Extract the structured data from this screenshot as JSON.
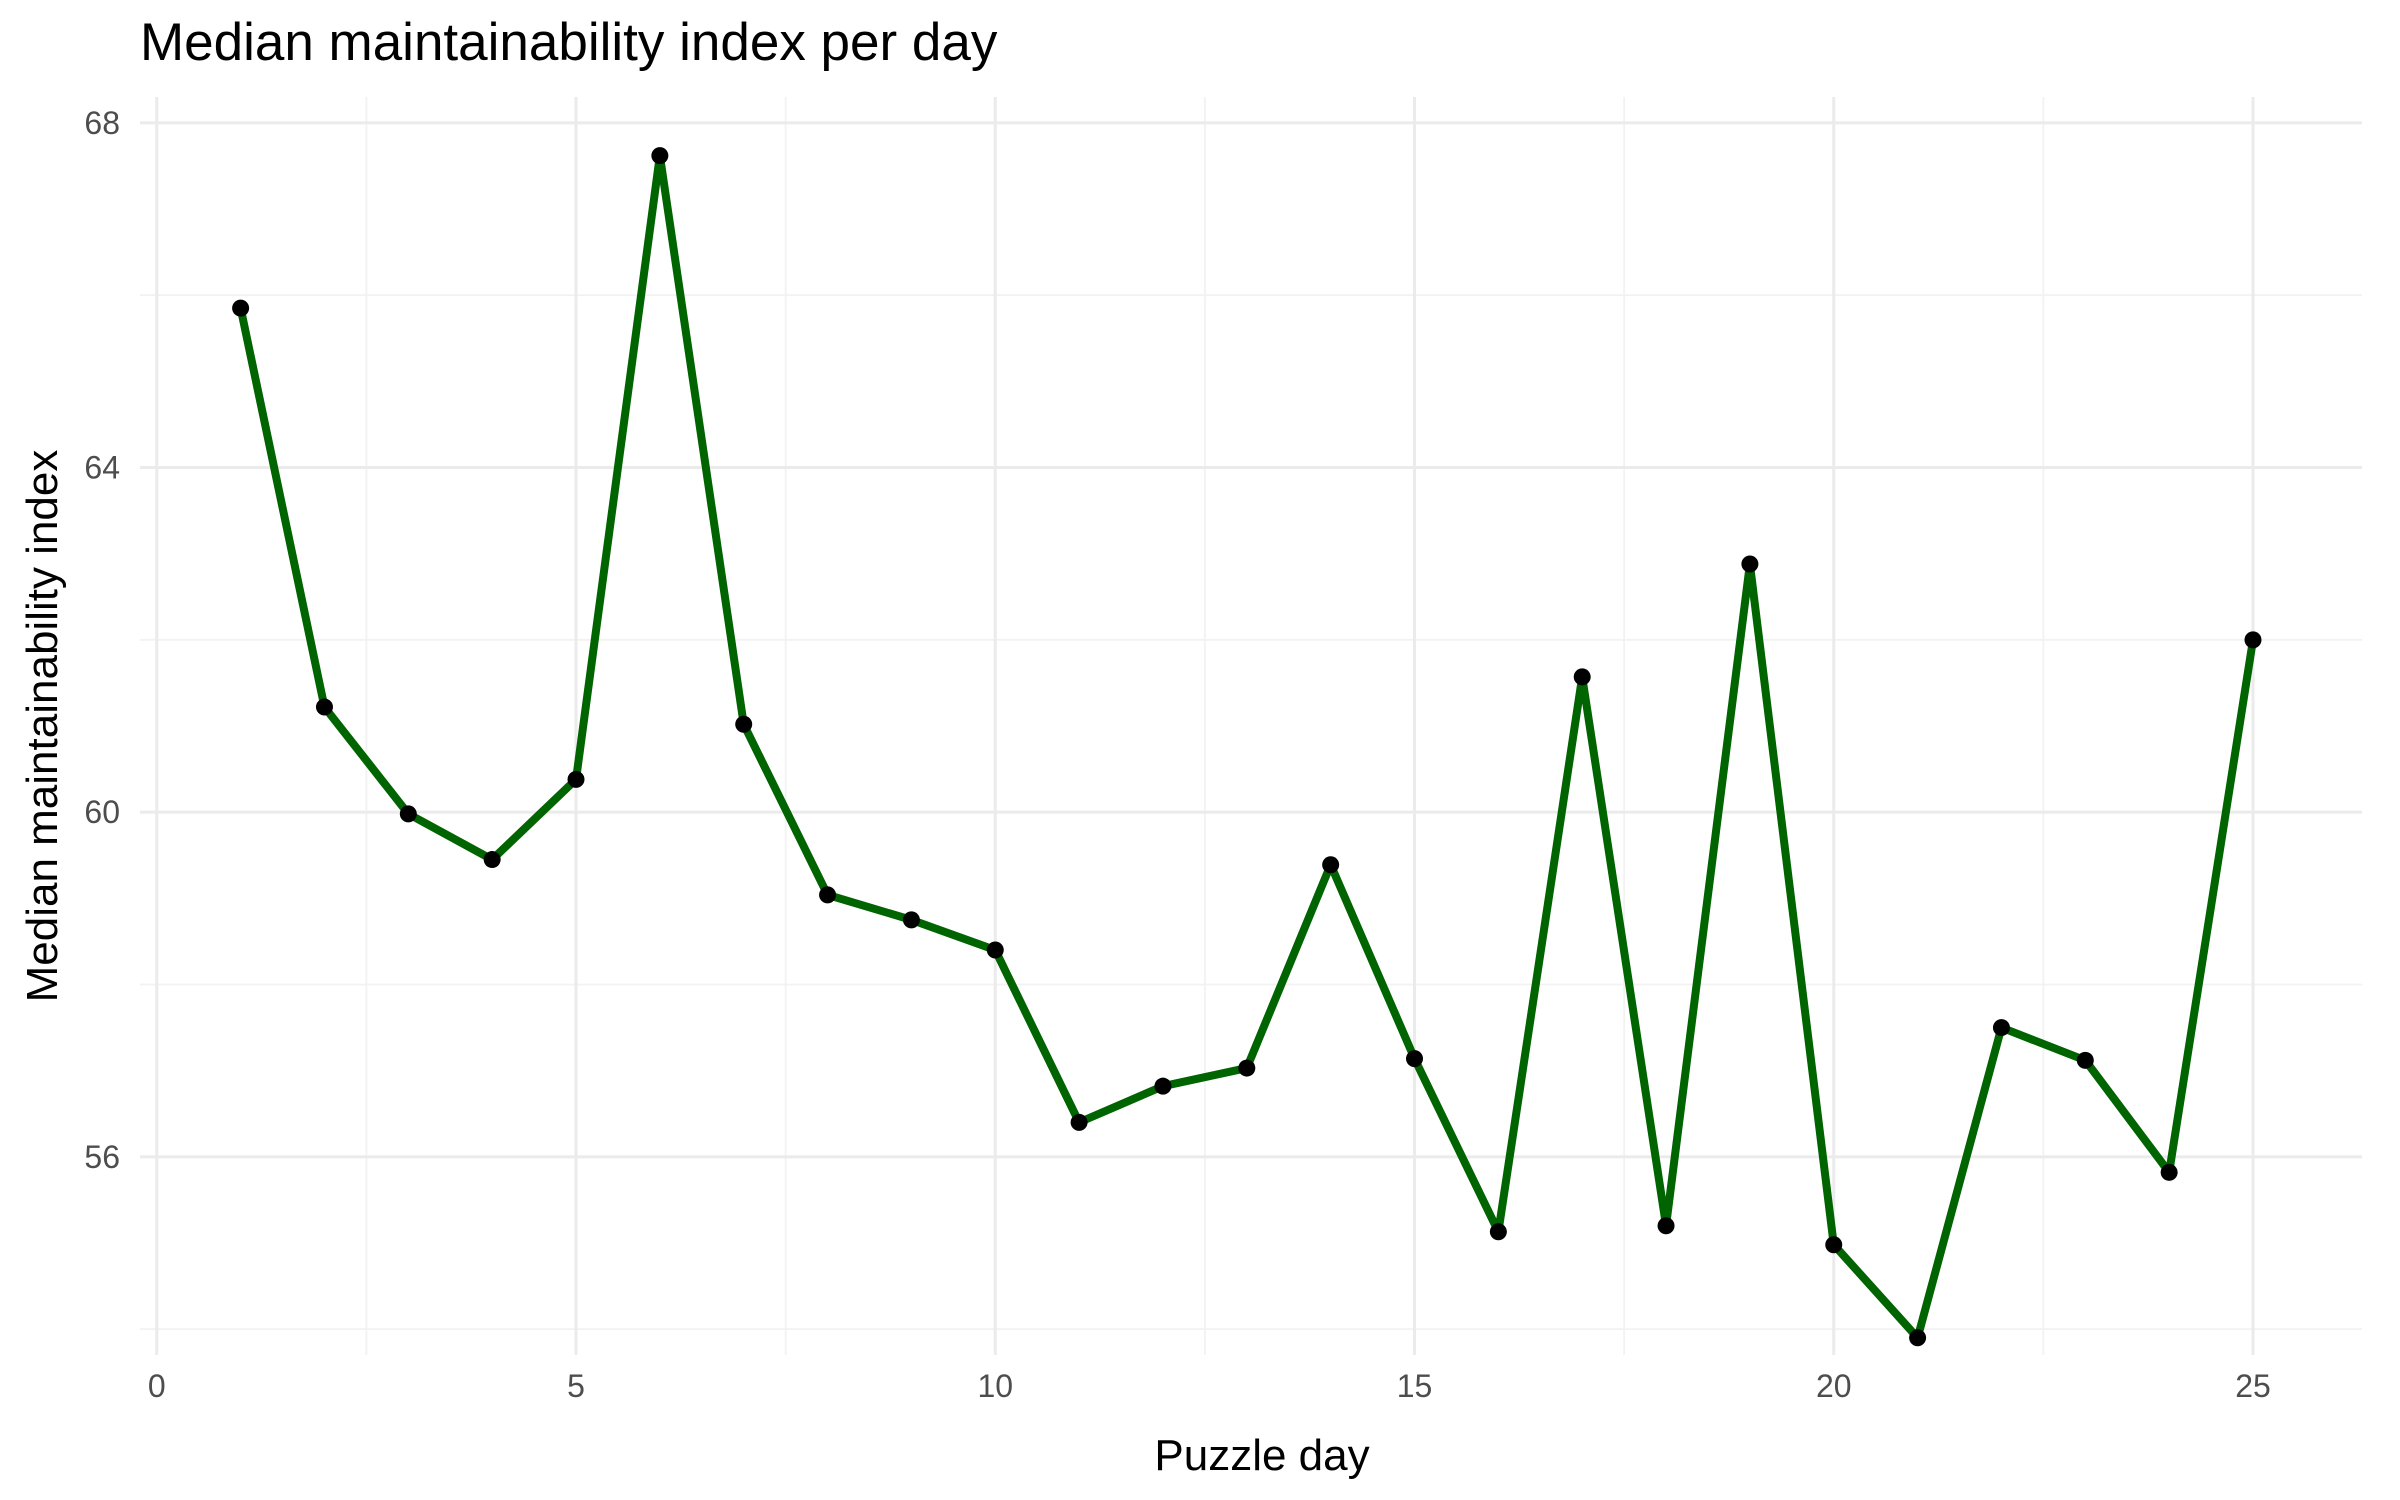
{
  "chart_data": {
    "type": "line",
    "title": "Median maintainability index per day",
    "xlabel": "Puzzle day",
    "ylabel": "Median maintainability index",
    "x": [
      1,
      2,
      3,
      4,
      5,
      6,
      7,
      8,
      9,
      10,
      11,
      12,
      13,
      14,
      15,
      16,
      17,
      18,
      19,
      20,
      21,
      22,
      23,
      24,
      25
    ],
    "series": [
      {
        "values": [
          65.85,
          61.22,
          59.98,
          59.45,
          60.38,
          67.62,
          61.02,
          59.04,
          58.75,
          58.4,
          56.4,
          56.82,
          57.03,
          59.39,
          57.14,
          55.13,
          61.57,
          55.2,
          62.88,
          54.98,
          53.9,
          57.5,
          57.12,
          55.82,
          62.0
        ]
      }
    ],
    "xlim": [
      -0.2,
      26.3
    ],
    "ylim": [
      53.7,
      68.3
    ],
    "x_ticks": [
      0,
      5,
      10,
      15,
      20,
      25
    ],
    "x_tick_labels": [
      "0",
      "5",
      "10",
      "15",
      "20",
      "25"
    ],
    "y_ticks": [
      56,
      60,
      64,
      68
    ],
    "y_tick_labels": [
      "56",
      "60",
      "64",
      "68"
    ],
    "grid": true,
    "legend": "none",
    "colors": {
      "line": "#006400",
      "point": "#000000",
      "grid": "#ebebeb"
    }
  }
}
